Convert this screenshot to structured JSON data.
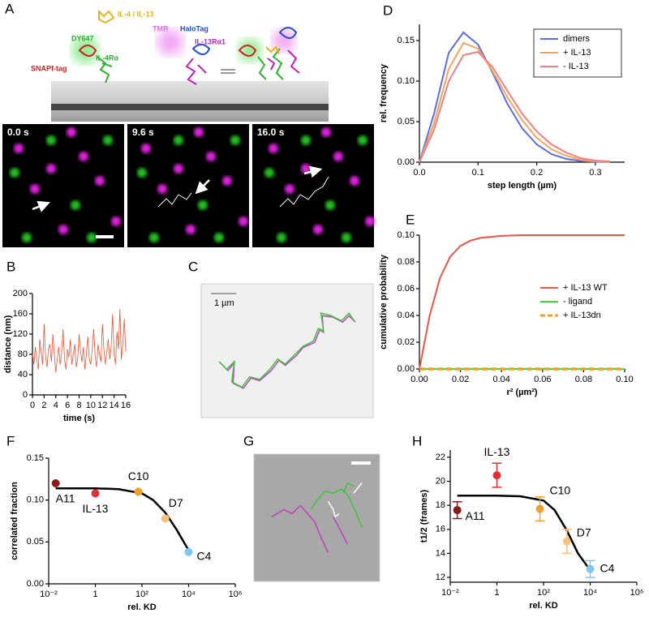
{
  "figure": {
    "panel": "A",
    "schematic_labels": [
      "IL-4 / IL-13",
      "DY647",
      "HaloTag",
      "TMR",
      "IL-13Rα1",
      "SNAPf-tag",
      "IL-4Rα"
    ],
    "frame_times": [
      "0.0 s",
      "9.6 s",
      "16.0 s"
    ]
  },
  "chart_data": [
    {
      "type": "line",
      "panel": "D",
      "x_label": "step length (µm)",
      "y_label": "rel. frequency",
      "x": [
        0,
        0.025,
        0.05,
        0.075,
        0.1,
        0.125,
        0.15,
        0.175,
        0.2,
        0.225,
        0.25,
        0.275,
        0.3,
        0.325
      ],
      "series": [
        {
          "name": "dimers",
          "color": "#5b6ee0",
          "values": [
            0,
            0.06,
            0.135,
            0.16,
            0.145,
            0.11,
            0.072,
            0.042,
            0.022,
            0.01,
            0.004,
            0.0015,
            0.0005,
            0
          ]
        },
        {
          "name": "+ IL-13",
          "color": "#f5a55a",
          "values": [
            0,
            0.048,
            0.115,
            0.147,
            0.14,
            0.112,
            0.08,
            0.052,
            0.03,
            0.016,
            0.008,
            0.003,
            0.001,
            0
          ]
        },
        {
          "name": "- IL-13",
          "color": "#f08080",
          "values": [
            0,
            0.04,
            0.1,
            0.132,
            0.136,
            0.117,
            0.088,
            0.06,
            0.038,
            0.022,
            0.012,
            0.005,
            0.002,
            0.001
          ]
        }
      ],
      "xlim": [
        0,
        0.35
      ],
      "xticks": [
        {
          "value": 0,
          "label": "0.0"
        },
        0.1,
        0.2,
        0.3
      ],
      "ylim": [
        0,
        0.17
      ],
      "yticks": [
        {
          "value": 0,
          "label": "0.00"
        },
        0.05,
        {
          "value": 0.1,
          "label": "0.10"
        },
        0.15
      ],
      "legend": "upper right",
      "legend_frame": true
    },
    {
      "type": "line",
      "panel": "E",
      "x_label": "r² (µm²)",
      "y_label": "cumulative probability",
      "x": [
        0,
        0.005,
        0.01,
        0.015,
        0.02,
        0.025,
        0.03,
        0.04,
        0.05,
        0.06,
        0.08,
        0.1
      ],
      "series": [
        {
          "name": "+ IL-13 WT",
          "color": "#ee5544",
          "values": [
            0,
            0.04,
            0.068,
            0.084,
            0.092,
            0.096,
            0.098,
            0.0995,
            0.1,
            0.1,
            0.1,
            0.1
          ]
        },
        {
          "name": "- ligand",
          "color": "#33dd33",
          "values": [
            0,
            0,
            0,
            0,
            0,
            0,
            0,
            0,
            0,
            0,
            0,
            0
          ]
        },
        {
          "name": "+ IL-13dn",
          "color": "#f0a020",
          "dash": true,
          "values": [
            0,
            0,
            0,
            0,
            0,
            0,
            0,
            0,
            0,
            0,
            0,
            0
          ]
        }
      ],
      "xlim": [
        0,
        0.1
      ],
      "xticks": [
        {
          "value": 0,
          "label": "0.00"
        },
        0.02,
        0.04,
        0.06,
        0.08,
        {
          "value": 0.1,
          "label": "0.10"
        }
      ],
      "ylim": [
        0,
        0.1
      ],
      "yticks": [
        {
          "value": 0,
          "label": "0.00"
        },
        0.02,
        0.04,
        0.06,
        0.08,
        {
          "value": 0.1,
          "label": "0.10"
        }
      ],
      "legend": "center right",
      "legend_frame": false
    },
    {
      "type": "line",
      "panel": "B",
      "x_label": "time (s)",
      "y_label": "distance (nm)",
      "x": [
        0,
        0.25,
        0.5,
        0.75,
        1,
        1.25,
        1.5,
        1.75,
        2,
        2.25,
        2.5,
        2.75,
        3,
        3.25,
        3.5,
        3.75,
        4,
        4.25,
        4.5,
        4.75,
        5,
        5.25,
        5.5,
        5.75,
        6,
        6.25,
        6.5,
        6.75,
        7,
        7.25,
        7.5,
        7.75,
        8,
        8.25,
        8.5,
        8.75,
        9,
        9.25,
        9.5,
        9.75,
        10,
        10.25,
        10.5,
        10.75,
        11,
        11.25,
        11.5,
        11.75,
        12,
        12.25,
        12.5,
        12.75,
        13,
        13.25,
        13.5,
        13.75,
        14,
        14.25,
        14.5,
        14.75,
        15,
        15.25,
        15.5,
        15.75,
        16
      ],
      "values": [
        80,
        60,
        95,
        70,
        50,
        110,
        85,
        60,
        140,
        75,
        55,
        90,
        100,
        65,
        120,
        80,
        45,
        70,
        95,
        60,
        85,
        130,
        70,
        50,
        90,
        75,
        110,
        60,
        80,
        100,
        55,
        70,
        120,
        85,
        65,
        95,
        50,
        80,
        115,
        70,
        60,
        90,
        130,
        75,
        55,
        100,
        80,
        65,
        140,
        90,
        60,
        85,
        110,
        70,
        95,
        160,
        80,
        60,
        125,
        90,
        170,
        70,
        100,
        150,
        85
      ],
      "color": "#f05030",
      "xlim": [
        0,
        16
      ],
      "xticks": [
        0,
        2,
        4,
        6,
        8,
        10,
        12,
        14,
        16
      ],
      "ylim": [
        0,
        200
      ],
      "yticks": [
        0,
        40,
        80,
        120,
        160,
        200
      ]
    },
    {
      "type": "trajectory",
      "panel": "C",
      "background": "#f0f0f0",
      "scale_bar": {
        "length": 1,
        "label": "1 µm"
      },
      "series": [
        {
          "color": "#c040c0",
          "x": [
            0.05,
            0.35,
            0.6,
            0.55,
            0.95,
            1.25,
            1.6,
            2.05,
            2.35,
            2.6,
            3.05,
            3.3,
            3.75,
            3.95,
            4.1,
            4.05,
            4.45,
            4.85,
            5.1,
            5.35
          ],
          "values": [
            1.25,
            0.95,
            1.25,
            0.45,
            0.25,
            0.65,
            0.55,
            0.95,
            1.35,
            1.15,
            1.55,
            1.85,
            2.05,
            2.55,
            2.45,
            3.1,
            3.05,
            2.85,
            3.1,
            2.85
          ]
        },
        {
          "color": "#3ec43e",
          "x": [
            0,
            0.3,
            0.6,
            0.5,
            0.9,
            1.2,
            1.6,
            2,
            2.3,
            2.6,
            3,
            3.3,
            3.7,
            3.9,
            4.1,
            4,
            4.4,
            4.8,
            5.1,
            5.3
          ],
          "values": [
            1.3,
            1,
            1.3,
            0.5,
            0.3,
            0.7,
            0.6,
            1,
            1.4,
            1.2,
            1.6,
            1.9,
            2.1,
            2.6,
            2.5,
            3.2,
            3.1,
            2.9,
            3.2,
            2.9
          ]
        }
      ]
    },
    {
      "type": "scatter",
      "panel": "F",
      "x_label": "rel. KD",
      "y_label": "correlated fraction",
      "points": {
        "x": [
          0.02,
          1,
          70,
          1000,
          10000
        ],
        "values": [
          0.12,
          0.108,
          0.11,
          0.078,
          0.038
        ],
        "labels": [
          "A11",
          "IL-13",
          "C10",
          "D7",
          "C4"
        ],
        "colors": [
          "#8b1a1a",
          "#e03030",
          "#f0a030",
          "#f5c080",
          "#80c8f0"
        ]
      },
      "fit": {
        "x": [
          0.02,
          0.1,
          1,
          10,
          100,
          300,
          1000,
          3000,
          10000
        ],
        "values": [
          0.114,
          0.114,
          0.114,
          0.113,
          0.108,
          0.1,
          0.085,
          0.065,
          0.04
        ]
      },
      "xscale": "log",
      "xlim": [
        0.01,
        1000000
      ],
      "xticks": [
        {
          "value": 0.01,
          "label": "10⁻²"
        },
        1,
        {
          "value": 100,
          "label": "10²"
        },
        {
          "value": 10000,
          "label": "10⁴"
        },
        {
          "value": 1000000,
          "label": "10⁶"
        }
      ],
      "ylim": [
        0,
        0.15
      ],
      "yticks": [
        {
          "value": 0,
          "label": "0.00"
        },
        0.05,
        {
          "value": 0.1,
          "label": "0.10"
        },
        0.15
      ]
    },
    {
      "type": "trajectory",
      "panel": "G",
      "background": "#a8a8a8",
      "series": [
        {
          "color": "#c040c0",
          "x": [
            0,
            12,
            20,
            28,
            35,
            42,
            null,
            42,
            48,
            55,
            null,
            60,
            68,
            74
          ],
          "values": [
            55,
            62,
            58,
            66,
            58,
            50,
            null,
            50,
            35,
            20,
            null,
            55,
            40,
            28
          ]
        },
        {
          "color": "#3ec43e",
          "x": [
            38,
            45,
            52,
            60,
            68,
            75,
            null,
            75,
            82,
            88,
            null,
            70,
            74,
            80
          ],
          "values": [
            62,
            72,
            80,
            78,
            82,
            75,
            null,
            75,
            60,
            45,
            null,
            78,
            88,
            85
          ]
        },
        {
          "color": "#ffffff",
          "x": [
            55,
            60,
            62,
            66,
            null,
            80,
            88
          ],
          "values": [
            70,
            62,
            55,
            58,
            null,
            78,
            88
          ]
        }
      ]
    },
    {
      "type": "scatter",
      "panel": "H",
      "x_label": "rel. KD",
      "y_label": "t1/2 (frames)",
      "points": {
        "x": [
          0.02,
          1,
          70,
          1000,
          10000
        ],
        "values": [
          17.6,
          20.5,
          17.7,
          15,
          12.7
        ],
        "errors": [
          0.7,
          1,
          1,
          1,
          0.7
        ],
        "labels": [
          "A11",
          "IL-13",
          "C10",
          "D7",
          "C4"
        ],
        "colors": [
          "#8b1a1a",
          "#e03030",
          "#f0a030",
          "#f5c080",
          "#80c8f0"
        ]
      },
      "fit": {
        "x": [
          0.02,
          1,
          10,
          100,
          300,
          1000,
          3000,
          10000
        ],
        "values": [
          18.8,
          18.8,
          18.75,
          18.4,
          17.6,
          15.9,
          14,
          12.6
        ]
      },
      "xscale": "log",
      "xlim": [
        0.01,
        1000000
      ],
      "xticks": [
        {
          "value": 0.01,
          "label": "10⁻²"
        },
        1,
        {
          "value": 100,
          "label": "10²"
        },
        {
          "value": 10000,
          "label": "10⁴"
        },
        {
          "value": 1000000,
          "label": "10⁶"
        }
      ],
      "ylim": [
        11.6,
        22.6
      ],
      "yticks": [
        12,
        14,
        16,
        18,
        20,
        22
      ]
    }
  ]
}
